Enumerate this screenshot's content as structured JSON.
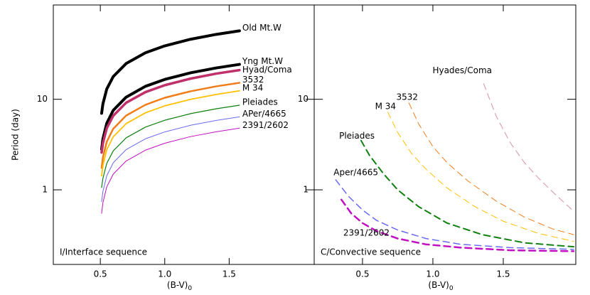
{
  "chart_data": [
    {
      "type": "line",
      "ylabel": "Period (day)",
      "xlabel": {
        "text": "(B-V)",
        "subscript": "0"
      },
      "annotation": "I/Interface sequence",
      "xlim": [
        0.135,
        2.16
      ],
      "ylim": [
        0.15,
        110
      ],
      "log_y": true,
      "xticks": [
        0.5,
        {
          "value": 1,
          "label": "1.0"
        },
        1.5
      ],
      "yticks": [
        1,
        10
      ],
      "x": [
        0.51,
        0.52,
        0.55,
        0.6,
        0.7,
        0.85,
        1.0,
        1.2,
        1.4,
        1.58
      ],
      "series": [
        {
          "name": "Old Mt.W",
          "color": "#000000",
          "width": 4,
          "values": [
            7.0,
            8.9,
            13.0,
            17.8,
            24.8,
            32.6,
            38.9,
            46.0,
            52.1,
            57
          ]
        },
        {
          "name": "Yng Mt.W",
          "color": "#000000",
          "width": 4,
          "values": [
            2.8,
            3.65,
            5.44,
            7.54,
            10.55,
            13.9,
            16.57,
            19.6,
            22.2,
            24.3
          ]
        },
        {
          "name": "Hyad/Coma",
          "color": "#c0306a",
          "width": 3.5,
          "values": [
            2.58,
            3.27,
            4.79,
            6.57,
            9.15,
            12.0,
            14.3,
            16.9,
            19.2,
            21
          ]
        },
        {
          "name": "3532",
          "color": "#f07d1a",
          "width": 2.5,
          "values": [
            1.75,
            2.28,
            3.4,
            4.72,
            6.6,
            8.69,
            10.4,
            12.25,
            13.9,
            15.2
          ]
        },
        {
          "name": "M 34",
          "color": "#ffc000",
          "width": 1.8,
          "values": [
            1.43,
            1.86,
            2.78,
            3.85,
            5.38,
            7.09,
            8.46,
            9.99,
            11.3,
            12.4
          ]
        },
        {
          "name": "Pleiades",
          "color": "#108010",
          "width": 1.2,
          "values": [
            1.06,
            1.34,
            1.96,
            2.69,
            3.75,
            4.93,
            5.87,
            6.94,
            7.86,
            8.6
          ]
        },
        {
          "name": "APer/4665",
          "color": "#6a6af0",
          "width": 1,
          "values": [
            0.74,
            0.96,
            1.43,
            1.99,
            2.78,
            3.66,
            4.36,
            5.16,
            5.84,
            6.4
          ]
        },
        {
          "name": "2391/2602",
          "color": "#c010c0",
          "width": 1,
          "values": [
            0.55,
            0.72,
            1.08,
            1.49,
            2.08,
            2.74,
            3.27,
            3.87,
            4.38,
            4.8
          ]
        }
      ]
    },
    {
      "type": "line",
      "xlabel": {
        "text": "(B-V)",
        "subscript": "0"
      },
      "annotation": "C/Convective sequence",
      "dashed": true,
      "xlim": [
        0.157,
        2.015
      ],
      "ylim": [
        0.15,
        110
      ],
      "log_y": true,
      "xticks": [
        0.5,
        {
          "value": 1,
          "label": "1.0"
        },
        1.5
      ],
      "yticks": [
        1,
        10
      ],
      "series": [
        {
          "name": "Hyades/Coma",
          "color": "#d890a8",
          "width": 1,
          "x": [
            1.36,
            1.45,
            1.55,
            1.65,
            1.75,
            1.85,
            2.0
          ],
          "values": [
            14.9,
            6.5,
            3.3,
            2.0,
            1.35,
            0.95,
            0.58
          ]
        },
        {
          "name": "3532",
          "color": "#f07d1a",
          "width": 1,
          "x": [
            0.83,
            0.9,
            1.0,
            1.1,
            1.25,
            1.45,
            1.65,
            1.85,
            2.0
          ],
          "values": [
            9.1,
            5.3,
            3.0,
            2.0,
            1.25,
            0.75,
            0.5,
            0.37,
            0.32
          ]
        },
        {
          "name": "M 34",
          "color": "#ffc000",
          "width": 1,
          "x": [
            0.68,
            0.75,
            0.85,
            0.95,
            1.1,
            1.3,
            1.5,
            1.75,
            2.0
          ],
          "values": [
            7.2,
            4.3,
            2.5,
            1.7,
            1.05,
            0.65,
            0.45,
            0.33,
            0.27
          ]
        },
        {
          "name": "Pleiades",
          "color": "#108010",
          "width": 2,
          "x": [
            0.49,
            0.55,
            0.65,
            0.75,
            0.9,
            1.1,
            1.35,
            1.65,
            2.0
          ],
          "values": [
            3.5,
            2.4,
            1.5,
            1.0,
            0.65,
            0.43,
            0.32,
            0.26,
            0.235
          ]
        },
        {
          "name": "Aper/4665",
          "color": "#6a6af0",
          "width": 1.5,
          "x": [
            0.31,
            0.4,
            0.5,
            0.6,
            0.75,
            0.95,
            1.2,
            1.55,
            2.0
          ],
          "values": [
            1.29,
            0.85,
            0.6,
            0.46,
            0.36,
            0.29,
            0.25,
            0.23,
            0.22
          ]
        },
        {
          "name": "2391/2602",
          "color": "#c010c0",
          "width": 2.5,
          "x": [
            0.35,
            0.42,
            0.5,
            0.6,
            0.75,
            0.95,
            1.2,
            1.55,
            2.0
          ],
          "values": [
            0.78,
            0.55,
            0.43,
            0.35,
            0.29,
            0.25,
            0.23,
            0.215,
            0.21
          ]
        }
      ]
    }
  ]
}
